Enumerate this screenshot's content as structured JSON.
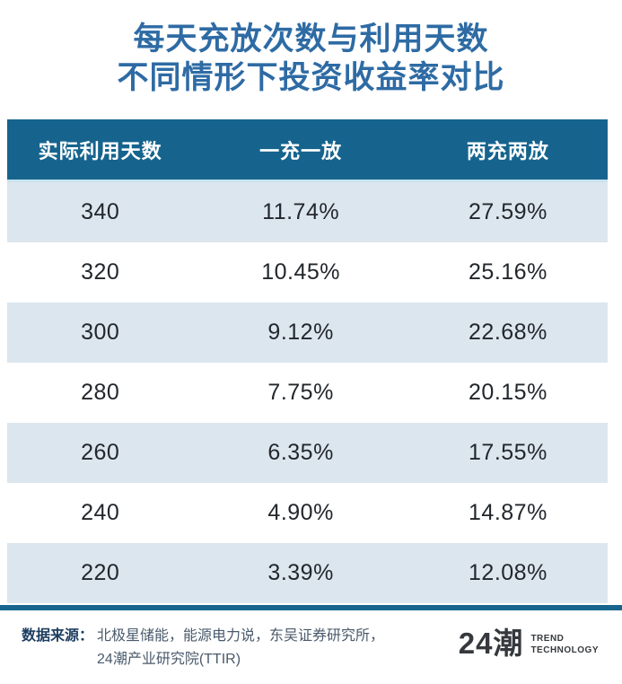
{
  "title": {
    "line1": "每天充放次数与利用天数",
    "line2": "不同情形下投资收益率对比"
  },
  "table": {
    "headers": {
      "days": "实际利用天数",
      "once": "一充一放",
      "twice": "两充两放"
    },
    "rows": [
      {
        "days": "340",
        "once": "11.74%",
        "twice": "27.59%"
      },
      {
        "days": "320",
        "once": "10.45%",
        "twice": "25.16%"
      },
      {
        "days": "300",
        "once": "9.12%",
        "twice": "22.68%"
      },
      {
        "days": "280",
        "once": "7.75%",
        "twice": "20.15%"
      },
      {
        "days": "260",
        "once": "6.35%",
        "twice": "17.55%"
      },
      {
        "days": "240",
        "once": "4.90%",
        "twice": "14.87%"
      },
      {
        "days": "220",
        "once": "3.39%",
        "twice": "12.08%"
      }
    ]
  },
  "footer": {
    "source_label": "数据来源：",
    "source_line1": "北极星储能，能源电力说，东吴证券研究所，",
    "source_line2": "24潮产业研究院(TTIR)",
    "logo_text": "24潮",
    "logo_sub1": "TREND",
    "logo_sub2": "TECHNOLOGY"
  },
  "colors": {
    "header_bg": "#16648E",
    "stripe_bg": "#DCE6EE",
    "title_text": "#2E6BA4",
    "bottom_rule": "#17648E",
    "source_label": "#1C3D5F",
    "source_text": "#4A5A6B",
    "logo": "#35393D",
    "cell_text": "#22272C"
  },
  "chart_data": {
    "type": "table",
    "title": "每天充放次数与利用天数不同情形下投资收益率对比",
    "columns": [
      "实际利用天数",
      "一充一放",
      "两充两放"
    ],
    "categories": [
      340,
      320,
      300,
      280,
      260,
      240,
      220
    ],
    "series": [
      {
        "name": "一充一放",
        "unit": "%",
        "values": [
          11.74,
          10.45,
          9.12,
          7.75,
          6.35,
          4.9,
          3.39
        ]
      },
      {
        "name": "两充两放",
        "unit": "%",
        "values": [
          27.59,
          25.16,
          22.68,
          20.15,
          17.55,
          14.87,
          12.08
        ]
      }
    ],
    "source": "北极星储能，能源电力说，东吴证券研究所，24潮产业研究院(TTIR)"
  }
}
